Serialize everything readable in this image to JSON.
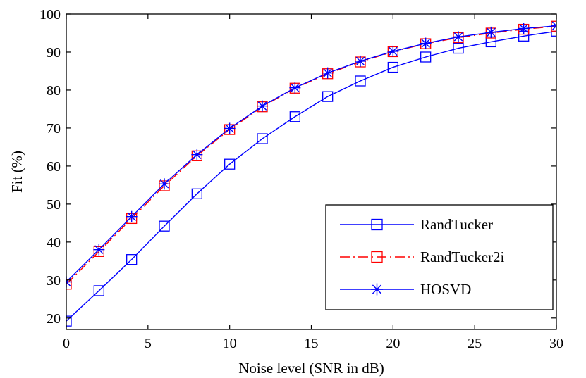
{
  "chart_data": {
    "type": "line",
    "xlabel": "Noise level (SNR in dB)",
    "ylabel": "Fit (%)",
    "xlim": [
      0,
      30
    ],
    "ylim": [
      17,
      100
    ],
    "xticks": [
      0,
      5,
      10,
      15,
      20,
      25,
      30
    ],
    "yticks": [
      20,
      30,
      40,
      50,
      60,
      70,
      80,
      90,
      100
    ],
    "grid": false,
    "legend_position": "bottom-right",
    "x": [
      0,
      2,
      4,
      6,
      8,
      10,
      12,
      14,
      16,
      18,
      20,
      22,
      24,
      26,
      28,
      30
    ],
    "series": [
      {
        "name": "RandTucker",
        "color": "#0000ff",
        "line_style": "solid",
        "marker": "square",
        "values": [
          19.2,
          27.2,
          35.4,
          44.2,
          52.7,
          60.5,
          67.2,
          73.0,
          78.3,
          82.4,
          86.0,
          88.7,
          91.0,
          92.7,
          94.2,
          95.5
        ]
      },
      {
        "name": "RandTucker2i",
        "color": "#ff0000",
        "line_style": "dash-dot",
        "marker": "square",
        "values": [
          28.9,
          37.5,
          46.2,
          54.8,
          62.7,
          69.6,
          75.6,
          80.5,
          84.3,
          87.4,
          90.1,
          92.2,
          93.8,
          95.0,
          96.0,
          96.8
        ]
      },
      {
        "name": "HOSVD",
        "color": "#0000ff",
        "line_style": "solid",
        "marker": "asterisk",
        "values": [
          29.5,
          38.0,
          46.7,
          55.3,
          63.0,
          69.9,
          75.8,
          80.6,
          84.5,
          87.6,
          90.2,
          92.3,
          94.0,
          95.2,
          96.2,
          96.9
        ]
      }
    ]
  }
}
